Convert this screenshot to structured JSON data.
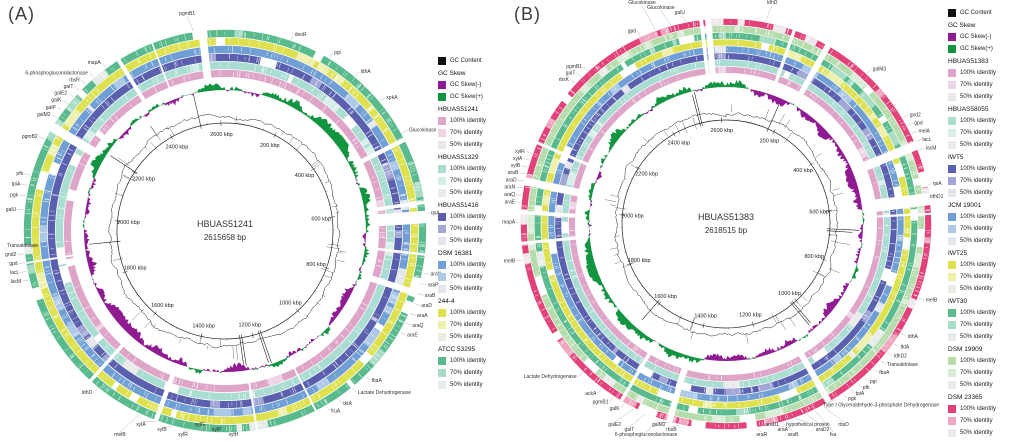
{
  "panels": [
    {
      "label": "(A)",
      "center_title": "HBUAS51241",
      "center_subtitle": "2615658 bp",
      "genome_kbp": 2615.658,
      "tick_labels": [
        "200 kbp",
        "400 kbp",
        "600 kbp",
        "800 kbp",
        "1000 kbp",
        "1200 kbp",
        "1400 kbp",
        "1600 kbp",
        "1800 kbp",
        "2000 kbp",
        "2200 kbp",
        "2400 kbp",
        "2600 kbp"
      ],
      "gc_content_color": "#1a1a1a",
      "skew_neg_color": "#8f1a92",
      "skew_pos_color": "#129540",
      "rings": [
        {
          "name": "HBUAS51241",
          "c100": "#dfa5c8",
          "c70": "#efd4e6",
          "c50": "#ebe7e9",
          "solid": true
        },
        {
          "name": "HBUAS51329",
          "c100": "#a9ddd2",
          "c70": "#d7efe9",
          "c50": "#e9eceb"
        },
        {
          "name": "HBUAS51416",
          "c100": "#5a60ae",
          "c70": "#a2a7d6",
          "c50": "#e4e4ec"
        },
        {
          "name": "DSM 16381",
          "c100": "#6f9fd4",
          "c70": "#adc9e8",
          "c50": "#e4e8ee"
        },
        {
          "name": "244-4",
          "c100": "#dee04e",
          "c70": "#eef0ab",
          "c50": "#ecece2"
        },
        {
          "name": "ATCC 53295",
          "c100": "#58ba8d",
          "c70": "#a9dcc5",
          "c50": "#e6ece9"
        }
      ],
      "ring_gaps": [
        {
          "a": 86,
          "w": 4
        },
        {
          "a": 301,
          "w": 3
        },
        {
          "a": 353.5,
          "w": 2.5
        },
        {
          "a": 108,
          "w": 2
        },
        {
          "a": 63,
          "w": 1.5
        },
        {
          "a": 200,
          "w": 1.5
        }
      ],
      "legend": [
        {
          "swatch": "#111111",
          "label": "GC Content"
        },
        {
          "header": "GC Skew"
        },
        {
          "swatch": "#8f1a92",
          "label": "GC Skew(-)"
        },
        {
          "swatch": "#129540",
          "label": "GC Skew(+)"
        },
        {
          "header": "HBUAS51241"
        },
        {
          "swatch": "#dfa5c8",
          "label": "100% identity"
        },
        {
          "swatch": "#efd4e6",
          "label": "70% identity"
        },
        {
          "swatch": "#ebe7e9",
          "label": "50% identity"
        },
        {
          "header": "HBUAS51329"
        },
        {
          "swatch": "#a9ddd2",
          "label": "100% identity"
        },
        {
          "swatch": "#d7efe9",
          "label": "70% identity"
        },
        {
          "swatch": "#e9eceb",
          "label": "50% identity"
        },
        {
          "header": "HBUAS51416"
        },
        {
          "swatch": "#5a60ae",
          "label": "100% identity"
        },
        {
          "swatch": "#a2a7d6",
          "label": "70% identity"
        },
        {
          "swatch": "#e4e4ec",
          "label": "50% identity"
        },
        {
          "header": "DSM 16381"
        },
        {
          "swatch": "#6f9fd4",
          "label": "100% identity"
        },
        {
          "swatch": "#adc9e8",
          "label": "70% identity"
        },
        {
          "swatch": "#e4e8ee",
          "label": "50% identity"
        },
        {
          "header": "244-4"
        },
        {
          "swatch": "#dee04e",
          "label": "100% identity"
        },
        {
          "swatch": "#eef0ab",
          "label": "70% identity"
        },
        {
          "swatch": "#ecece2",
          "label": "50% identity"
        },
        {
          "header": "ATCC 53295"
        },
        {
          "swatch": "#58ba8d",
          "label": "100% identity"
        },
        {
          "swatch": "#a9dcc5",
          "label": "70% identity"
        },
        {
          "swatch": "#e6ece9",
          "label": "50% identity"
        }
      ],
      "gene_labels": [
        {
          "t": "pgmB1",
          "a": 351
        },
        {
          "t": "deoR",
          "a": 19
        },
        {
          "t": "pgi",
          "a": 31
        },
        {
          "t": "ldhA",
          "a": 40
        },
        {
          "t": "xpkA",
          "a": 50
        },
        {
          "t": "Glucokinase",
          "a": 61
        },
        {
          "t": "rpiA",
          "a": 85
        },
        {
          "t": "araN",
          "a": 102
        },
        {
          "t": "araP",
          "a": 105
        },
        {
          "t": "araB",
          "a": 108
        },
        {
          "t": "araD",
          "a": 111
        },
        {
          "t": "araA",
          "a": 114
        },
        {
          "t": "araQ",
          "a": 117
        },
        {
          "t": "araE",
          "a": 120
        },
        {
          "t": "fbaA",
          "a": 136
        },
        {
          "t": "Lactate Dehydrogenase",
          "a": 141
        },
        {
          "t": "tktA",
          "a": 146
        },
        {
          "t": "fruA",
          "a": 150
        },
        {
          "t": "xylH",
          "a": 178
        },
        {
          "t": "xylP",
          "a": 182
        },
        {
          "t": "xylG",
          "a": 186
        },
        {
          "t": "xylR",
          "a": 190
        },
        {
          "t": "xylB",
          "a": 195
        },
        {
          "t": "xylA",
          "a": 200
        },
        {
          "t": "melB",
          "a": 205
        },
        {
          "t": "ldhD",
          "a": 219
        },
        {
          "t": "lacM",
          "a": 256
        },
        {
          "t": "lacL",
          "a": 258.5
        },
        {
          "t": "gpd",
          "a": 261
        },
        {
          "t": "gnd2",
          "a": 263.5
        },
        {
          "t": "Transaldolase",
          "a": 266
        },
        {
          "t": "galU",
          "a": 276
        },
        {
          "t": "pgk",
          "a": 280
        },
        {
          "t": "tpiA",
          "a": 283
        },
        {
          "t": "pfk",
          "a": 286
        },
        {
          "t": "pgmB2",
          "a": 297
        },
        {
          "t": "galM2",
          "a": 304
        },
        {
          "t": "galP",
          "a": 306.5
        },
        {
          "t": "galK",
          "a": 309
        },
        {
          "t": "galE2",
          "a": 311.5
        },
        {
          "t": "galT",
          "a": 314
        },
        {
          "t": "rbsR",
          "a": 316.5
        },
        {
          "t": "6-phosphogluconolactonase",
          "a": 319.5
        },
        {
          "t": "mapA",
          "a": 324
        }
      ]
    },
    {
      "label": "(B)",
      "center_title": "HBUAS51383",
      "center_subtitle": "2618515 bp",
      "genome_kbp": 2618.515,
      "tick_labels": [
        "200 kbp",
        "400 kbp",
        "600 kbp",
        "800 kbp",
        "1000 kbp",
        "1200 kbp",
        "1400 kbp",
        "1600 kbp",
        "1800 kbp",
        "2000 kbp",
        "2200 kbp",
        "2400 kbp",
        "2600 kbp"
      ],
      "gc_content_color": "#1a1a1a",
      "skew_neg_color": "#8f1a92",
      "skew_pos_color": "#129540",
      "rings": [
        {
          "name": "HBUAS51383",
          "c100": "#dfa5c8",
          "c70": "#efd4e6",
          "c50": "#ebe7e9",
          "solid": true
        },
        {
          "name": "HBUAS58055",
          "c100": "#a9ddd2",
          "c70": "#d7efe9",
          "c50": "#e9eceb"
        },
        {
          "name": "IWT5",
          "c100": "#5a60ae",
          "c70": "#a2a7d6",
          "c50": "#e4e4ec"
        },
        {
          "name": "JCM 19001",
          "c100": "#6f9fd4",
          "c70": "#adc9e8",
          "c50": "#e4e8ee"
        },
        {
          "name": "IWT25",
          "c100": "#dee04e",
          "c70": "#eef0ab",
          "c50": "#ecece2"
        },
        {
          "name": "IWT30",
          "c100": "#58ba8d",
          "c70": "#a9dcc5",
          "c50": "#e6ece9"
        },
        {
          "name": "DSM 19909",
          "c100": "#b5dcab",
          "c70": "#d9eed4",
          "c50": "#eaecea"
        },
        {
          "name": "DSM 23365",
          "c100": "#e2417a",
          "c70": "#f0a6c0",
          "c50": "#eee9ec"
        }
      ],
      "ring_gaps": [
        {
          "a": 67.5,
          "w": 3
        },
        {
          "a": 83,
          "w": 4
        },
        {
          "a": 355,
          "w": 2
        },
        {
          "a": 150,
          "w": 2
        },
        {
          "a": 282,
          "w": 2.5
        },
        {
          "a": 196,
          "w": 2
        },
        {
          "a": 30,
          "w": 1.5
        }
      ],
      "legend": [
        {
          "swatch": "#111111",
          "label": "GC Content"
        },
        {
          "header": "GC Skew"
        },
        {
          "swatch": "#8f1a92",
          "label": "GC Skew(-)"
        },
        {
          "swatch": "#129540",
          "label": "GC Skew(+)"
        },
        {
          "header": "HBUAS51383"
        },
        {
          "swatch": "#dfa5c8",
          "label": "100% identity"
        },
        {
          "swatch": "#efd4e6",
          "label": "70% identity"
        },
        {
          "swatch": "#ebe7e9",
          "label": "50% identity"
        },
        {
          "header": "HBUAS58055"
        },
        {
          "swatch": "#a9ddd2",
          "label": "100% identity"
        },
        {
          "swatch": "#d7efe9",
          "label": "70% identity"
        },
        {
          "swatch": "#e9eceb",
          "label": "50% identity"
        },
        {
          "header": "IWT5"
        },
        {
          "swatch": "#5a60ae",
          "label": "100% identity"
        },
        {
          "swatch": "#a2a7d6",
          "label": "70% identity"
        },
        {
          "swatch": "#e4e4ec",
          "label": "50% identity"
        },
        {
          "header": "JCM 19001"
        },
        {
          "swatch": "#6f9fd4",
          "label": "100% identity"
        },
        {
          "swatch": "#adc9e8",
          "label": "70% identity"
        },
        {
          "swatch": "#e4e8ee",
          "label": "50% identity"
        },
        {
          "header": "IWT25"
        },
        {
          "swatch": "#dee04e",
          "label": "100% identity"
        },
        {
          "swatch": "#eef0ab",
          "label": "70% identity"
        },
        {
          "swatch": "#ecece2",
          "label": "50% identity"
        },
        {
          "header": "IWT30"
        },
        {
          "swatch": "#58ba8d",
          "label": "100% identity"
        },
        {
          "swatch": "#a9dcc5",
          "label": "70% identity"
        },
        {
          "swatch": "#e6ece9",
          "label": "50% identity"
        },
        {
          "header": "DSM 19909"
        },
        {
          "swatch": "#b5dcab",
          "label": "100% identity"
        },
        {
          "swatch": "#d9eed4",
          "label": "70% identity"
        },
        {
          "swatch": "#eaecea",
          "label": "50% identity"
        },
        {
          "header": "DSM 23365"
        },
        {
          "swatch": "#e2417a",
          "label": "100% identity"
        },
        {
          "swatch": "#f0a6c0",
          "label": "70% identity"
        },
        {
          "swatch": "#eee9ec",
          "label": "50% identity"
        }
      ],
      "gene_labels": [
        {
          "t": "ldhD",
          "a": 11
        },
        {
          "t": "galM3",
          "a": 43
        },
        {
          "t": "gnd2",
          "a": 59
        },
        {
          "t": "gpd",
          "a": 61.5
        },
        {
          "t": "melA",
          "a": 64
        },
        {
          "t": "lacL",
          "a": 66.5
        },
        {
          "t": "lacM",
          "a": 69
        },
        {
          "t": "rpiA",
          "a": 79
        },
        {
          "t": "ldhD1",
          "a": 82.5
        },
        {
          "t": "melB",
          "a": 111
        },
        {
          "t": "ldhA",
          "a": 122
        },
        {
          "t": "tktA",
          "a": 125.5
        },
        {
          "t": "ldhD2",
          "a": 128.5
        },
        {
          "t": "Transaldolase",
          "a": 131.5
        },
        {
          "t": "fbaA",
          "a": 134.5
        },
        {
          "t": "pgi",
          "a": 138
        },
        {
          "t": "pfk",
          "a": 140.5
        },
        {
          "t": "tpiA",
          "a": 143
        },
        {
          "t": "pgk",
          "a": 145.5
        },
        {
          "t": "Type I Glyceraldehyde-3-phosphate Dehydrogenase",
          "a": 148.5
        },
        {
          "t": "rbsD",
          "a": 152
        },
        {
          "t": "fsa",
          "a": 154.5
        },
        {
          "t": "araD2",
          "a": 157
        },
        {
          "t": "hypothetical protein",
          "a": 160.5
        },
        {
          "t": "araB",
          "a": 164
        },
        {
          "t": "araA",
          "a": 166.5
        },
        {
          "t": "araD1",
          "a": 169
        },
        {
          "t": "araR",
          "a": 171.5
        },
        {
          "t": "rbsB",
          "a": 193
        },
        {
          "t": "galM2",
          "a": 196
        },
        {
          "t": "6-phosphogluconolactonase",
          "a": 199
        },
        {
          "t": "galT",
          "a": 203
        },
        {
          "t": "galE2",
          "a": 206.5
        },
        {
          "t": "galK",
          "a": 209.5
        },
        {
          "t": "pgmB1",
          "a": 213
        },
        {
          "t": "ackA",
          "a": 217
        },
        {
          "t": "Lactate Dehydrogenase",
          "a": 224
        },
        {
          "t": "melB",
          "a": 260
        },
        {
          "t": "mapA",
          "a": 270.5
        },
        {
          "t": "araE",
          "a": 276
        },
        {
          "t": "araQ",
          "a": 278
        },
        {
          "t": "araN",
          "a": 280
        },
        {
          "t": "araD",
          "a": 282
        },
        {
          "t": "araB",
          "a": 284
        },
        {
          "t": "xylB",
          "a": 286
        },
        {
          "t": "xylA",
          "a": 288
        },
        {
          "t": "xylR",
          "a": 290
        },
        {
          "t": "rbsK",
          "a": 313
        },
        {
          "t": "galT",
          "a": 315.5
        },
        {
          "t": "pgmB1",
          "a": 318
        },
        {
          "t": "gpd",
          "a": 335.5
        },
        {
          "t": "Glucokinase",
          "a": 340
        },
        {
          "t": "Glucokinase",
          "a": 344.5
        },
        {
          "t": "galU",
          "a": 349
        }
      ]
    }
  ]
}
